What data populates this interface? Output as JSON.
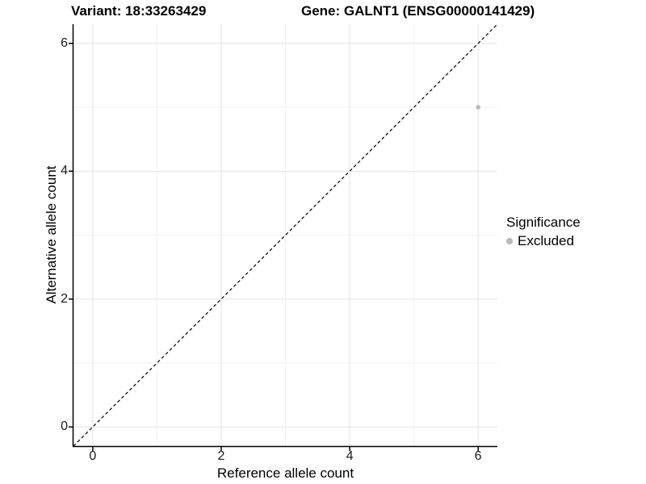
{
  "header": {
    "variant_title": "Variant: 18:33263429",
    "gene_title": "Gene: GALNT1 (ENSG00000141429)"
  },
  "chart_data": {
    "type": "scatter",
    "xlabel": "Reference allele count",
    "ylabel": "Alternative allele count",
    "xlim": [
      -0.3,
      6.3
    ],
    "ylim": [
      -0.3,
      6.3
    ],
    "x_ticks": [
      0,
      2,
      4,
      6
    ],
    "y_ticks": [
      0,
      2,
      4,
      6
    ],
    "x_minor_ticks": [
      1,
      3,
      5
    ],
    "y_minor_ticks": [
      1,
      3,
      5
    ],
    "grid": true,
    "series": [
      {
        "name": "Excluded",
        "color": "#b9b9b9",
        "points": [
          {
            "x": 6,
            "y": 5
          }
        ]
      }
    ],
    "reference_line": {
      "style": "dashed",
      "color": "#000000",
      "from": [
        -0.3,
        -0.3
      ],
      "to": [
        6.3,
        6.3
      ]
    },
    "legend": {
      "title": "Significance",
      "position": "right",
      "items": [
        {
          "label": "Excluded",
          "color": "#b9b9b9"
        }
      ]
    }
  },
  "colors": {
    "background": "#ffffff",
    "grid_major": "#e3e3e3",
    "grid_minor": "#f0f0f0",
    "axis": "#000000",
    "point": "#b9b9b9"
  }
}
